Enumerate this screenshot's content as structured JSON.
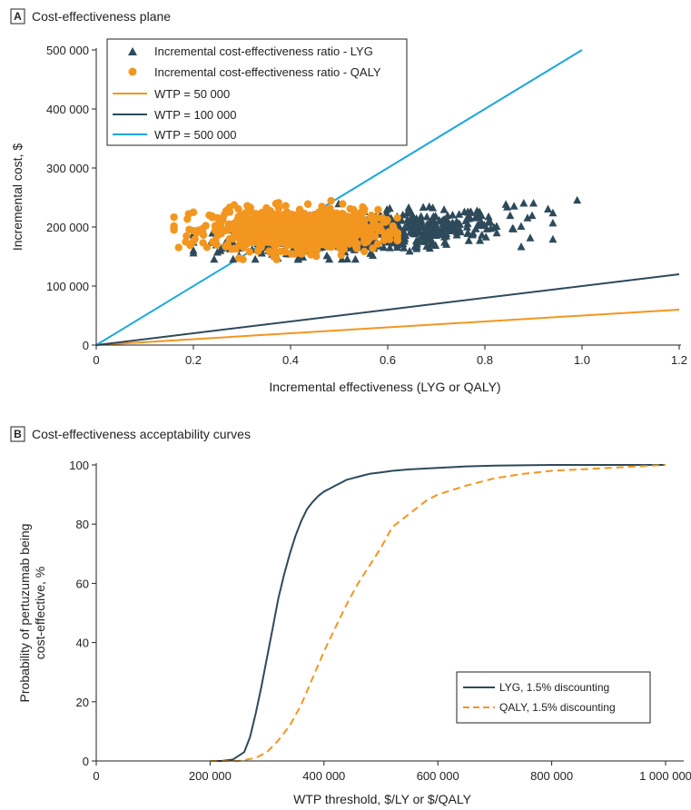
{
  "chart_data": [
    {
      "type": "scatter",
      "panel_letter": "A",
      "title": "Cost-effectiveness plane",
      "xlabel": "Incremental effectiveness (LYG or QALY)",
      "ylabel": "Incremental cost, $",
      "xlim": [
        0,
        1.2
      ],
      "ylim": [
        0,
        500000
      ],
      "xticks": [
        "0",
        "0.2",
        "0.4",
        "0.6",
        "0.8",
        "1.0",
        "1.2"
      ],
      "yticks": [
        "0",
        "100 000",
        "200 000",
        "300 000",
        "400 000",
        "500 000"
      ],
      "legend_position": "top-left",
      "colors": {
        "lyg": "#2e4a5a",
        "qaly": "#f3961f",
        "wtp50": "#f3961f",
        "wtp100": "#2e4a5a",
        "wtp500": "#1aa6df"
      },
      "series": [
        {
          "name": "Incremental cost-effectiveness ratio - LYG",
          "marker": "triangle",
          "x_range": [
            0.2,
            0.99
          ],
          "y_range": [
            145000,
            248000
          ]
        },
        {
          "name": "Incremental cost-effectiveness ratio - QALY",
          "marker": "circle",
          "x_range": [
            0.16,
            0.62
          ],
          "y_range": [
            145000,
            250000
          ]
        }
      ],
      "lines": [
        {
          "name": "WTP = 50 000",
          "slope": 50000,
          "x_end": 1.2
        },
        {
          "name": "WTP = 100 000",
          "slope": 100000,
          "x_end": 1.2
        },
        {
          "name": "WTP = 500 000",
          "slope": 500000,
          "x_end": 1.0
        }
      ],
      "highlight_points": [
        {
          "series": "LYG",
          "x": 0.99,
          "y": 245000
        },
        {
          "series": "LYG",
          "x": 0.93,
          "y": 230000
        },
        {
          "series": "LYG",
          "x": 0.9,
          "y": 240000
        },
        {
          "series": "LYG",
          "x": 0.88,
          "y": 240000
        },
        {
          "series": "LYG",
          "x": 0.86,
          "y": 235000
        },
        {
          "series": "LYG",
          "x": 0.2,
          "y": 160000
        },
        {
          "series": "QALY",
          "x": 0.16,
          "y": 195000
        },
        {
          "series": "QALY",
          "x": 0.2,
          "y": 225000
        }
      ]
    },
    {
      "type": "line",
      "panel_letter": "B",
      "title": "Cost-effectiveness acceptability curves",
      "xlabel": "WTP threshold, $/LY or $/QALY",
      "ylabel": "Probability of pertuzumab being cost-effective, %",
      "ylabel_lines": [
        "Probability of pertuzumab being",
        "cost-effective, %"
      ],
      "xlim": [
        0,
        1000000
      ],
      "ylim": [
        0,
        100
      ],
      "xticks": [
        "0",
        "200 000",
        "400 000",
        "600 000",
        "800 000",
        "1 000 000"
      ],
      "yticks": [
        "0",
        "20",
        "40",
        "60",
        "80",
        "100"
      ],
      "legend_position": "bottom-right",
      "series": [
        {
          "name": "LYG, 1.5% discounting",
          "style": "solid",
          "color": "#2e4a5a",
          "x": [
            200000,
            220000,
            240000,
            260000,
            270000,
            280000,
            290000,
            300000,
            310000,
            320000,
            330000,
            340000,
            350000,
            360000,
            370000,
            380000,
            390000,
            400000,
            410000,
            420000,
            430000,
            440000,
            450000,
            460000,
            470000,
            480000,
            500000,
            520000,
            550000,
            600000,
            650000,
            700000,
            800000,
            900000,
            1000000
          ],
          "values": [
            0,
            0,
            0.5,
            3,
            8,
            16,
            25,
            35,
            45,
            55,
            63,
            70,
            76,
            81,
            85,
            87.5,
            89.5,
            91,
            92,
            93,
            94,
            95,
            95.5,
            96,
            96.5,
            97,
            97.5,
            98,
            98.5,
            99,
            99.5,
            99.8,
            100,
            100,
            100
          ]
        },
        {
          "name": "QALY, 1.5% discounting",
          "style": "dashed",
          "color": "#f3961f",
          "x": [
            200000,
            250000,
            280000,
            300000,
            320000,
            340000,
            360000,
            380000,
            400000,
            420000,
            440000,
            460000,
            480000,
            500000,
            520000,
            540000,
            560000,
            580000,
            600000,
            650000,
            700000,
            750000,
            800000,
            850000,
            900000,
            950000,
            1000000
          ],
          "values": [
            0,
            0,
            1,
            3,
            7,
            12,
            19,
            28,
            37,
            45,
            53,
            60,
            66,
            72,
            79,
            82,
            85,
            88,
            90,
            93,
            95.5,
            97,
            98,
            98.5,
            99,
            99.5,
            100
          ]
        }
      ]
    }
  ]
}
